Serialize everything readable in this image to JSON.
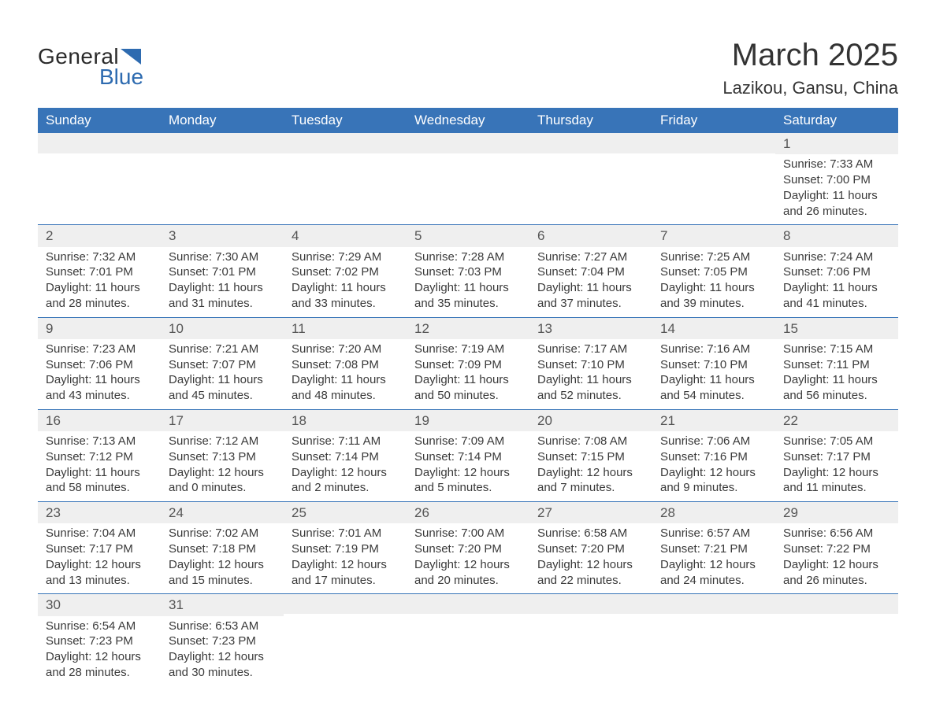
{
  "logo": {
    "text1": "General",
    "text2": "Blue",
    "tri_color": "#2e6bb0"
  },
  "title": {
    "month": "March 2025",
    "location": "Lazikou, Gansu, China"
  },
  "colors": {
    "header_bg": "#3874b8",
    "header_text": "#ffffff",
    "daynum_bg": "#efefef",
    "border": "#3874b8",
    "body_text": "#3a3a3a"
  },
  "day_headers": [
    "Sunday",
    "Monday",
    "Tuesday",
    "Wednesday",
    "Thursday",
    "Friday",
    "Saturday"
  ],
  "weeks": [
    [
      {
        "n": "",
        "sunrise": "",
        "sunset": "",
        "dl1": "",
        "dl2": ""
      },
      {
        "n": "",
        "sunrise": "",
        "sunset": "",
        "dl1": "",
        "dl2": ""
      },
      {
        "n": "",
        "sunrise": "",
        "sunset": "",
        "dl1": "",
        "dl2": ""
      },
      {
        "n": "",
        "sunrise": "",
        "sunset": "",
        "dl1": "",
        "dl2": ""
      },
      {
        "n": "",
        "sunrise": "",
        "sunset": "",
        "dl1": "",
        "dl2": ""
      },
      {
        "n": "",
        "sunrise": "",
        "sunset": "",
        "dl1": "",
        "dl2": ""
      },
      {
        "n": "1",
        "sunrise": "Sunrise: 7:33 AM",
        "sunset": "Sunset: 7:00 PM",
        "dl1": "Daylight: 11 hours",
        "dl2": "and 26 minutes."
      }
    ],
    [
      {
        "n": "2",
        "sunrise": "Sunrise: 7:32 AM",
        "sunset": "Sunset: 7:01 PM",
        "dl1": "Daylight: 11 hours",
        "dl2": "and 28 minutes."
      },
      {
        "n": "3",
        "sunrise": "Sunrise: 7:30 AM",
        "sunset": "Sunset: 7:01 PM",
        "dl1": "Daylight: 11 hours",
        "dl2": "and 31 minutes."
      },
      {
        "n": "4",
        "sunrise": "Sunrise: 7:29 AM",
        "sunset": "Sunset: 7:02 PM",
        "dl1": "Daylight: 11 hours",
        "dl2": "and 33 minutes."
      },
      {
        "n": "5",
        "sunrise": "Sunrise: 7:28 AM",
        "sunset": "Sunset: 7:03 PM",
        "dl1": "Daylight: 11 hours",
        "dl2": "and 35 minutes."
      },
      {
        "n": "6",
        "sunrise": "Sunrise: 7:27 AM",
        "sunset": "Sunset: 7:04 PM",
        "dl1": "Daylight: 11 hours",
        "dl2": "and 37 minutes."
      },
      {
        "n": "7",
        "sunrise": "Sunrise: 7:25 AM",
        "sunset": "Sunset: 7:05 PM",
        "dl1": "Daylight: 11 hours",
        "dl2": "and 39 minutes."
      },
      {
        "n": "8",
        "sunrise": "Sunrise: 7:24 AM",
        "sunset": "Sunset: 7:06 PM",
        "dl1": "Daylight: 11 hours",
        "dl2": "and 41 minutes."
      }
    ],
    [
      {
        "n": "9",
        "sunrise": "Sunrise: 7:23 AM",
        "sunset": "Sunset: 7:06 PM",
        "dl1": "Daylight: 11 hours",
        "dl2": "and 43 minutes."
      },
      {
        "n": "10",
        "sunrise": "Sunrise: 7:21 AM",
        "sunset": "Sunset: 7:07 PM",
        "dl1": "Daylight: 11 hours",
        "dl2": "and 45 minutes."
      },
      {
        "n": "11",
        "sunrise": "Sunrise: 7:20 AM",
        "sunset": "Sunset: 7:08 PM",
        "dl1": "Daylight: 11 hours",
        "dl2": "and 48 minutes."
      },
      {
        "n": "12",
        "sunrise": "Sunrise: 7:19 AM",
        "sunset": "Sunset: 7:09 PM",
        "dl1": "Daylight: 11 hours",
        "dl2": "and 50 minutes."
      },
      {
        "n": "13",
        "sunrise": "Sunrise: 7:17 AM",
        "sunset": "Sunset: 7:10 PM",
        "dl1": "Daylight: 11 hours",
        "dl2": "and 52 minutes."
      },
      {
        "n": "14",
        "sunrise": "Sunrise: 7:16 AM",
        "sunset": "Sunset: 7:10 PM",
        "dl1": "Daylight: 11 hours",
        "dl2": "and 54 minutes."
      },
      {
        "n": "15",
        "sunrise": "Sunrise: 7:15 AM",
        "sunset": "Sunset: 7:11 PM",
        "dl1": "Daylight: 11 hours",
        "dl2": "and 56 minutes."
      }
    ],
    [
      {
        "n": "16",
        "sunrise": "Sunrise: 7:13 AM",
        "sunset": "Sunset: 7:12 PM",
        "dl1": "Daylight: 11 hours",
        "dl2": "and 58 minutes."
      },
      {
        "n": "17",
        "sunrise": "Sunrise: 7:12 AM",
        "sunset": "Sunset: 7:13 PM",
        "dl1": "Daylight: 12 hours",
        "dl2": "and 0 minutes."
      },
      {
        "n": "18",
        "sunrise": "Sunrise: 7:11 AM",
        "sunset": "Sunset: 7:14 PM",
        "dl1": "Daylight: 12 hours",
        "dl2": "and 2 minutes."
      },
      {
        "n": "19",
        "sunrise": "Sunrise: 7:09 AM",
        "sunset": "Sunset: 7:14 PM",
        "dl1": "Daylight: 12 hours",
        "dl2": "and 5 minutes."
      },
      {
        "n": "20",
        "sunrise": "Sunrise: 7:08 AM",
        "sunset": "Sunset: 7:15 PM",
        "dl1": "Daylight: 12 hours",
        "dl2": "and 7 minutes."
      },
      {
        "n": "21",
        "sunrise": "Sunrise: 7:06 AM",
        "sunset": "Sunset: 7:16 PM",
        "dl1": "Daylight: 12 hours",
        "dl2": "and 9 minutes."
      },
      {
        "n": "22",
        "sunrise": "Sunrise: 7:05 AM",
        "sunset": "Sunset: 7:17 PM",
        "dl1": "Daylight: 12 hours",
        "dl2": "and 11 minutes."
      }
    ],
    [
      {
        "n": "23",
        "sunrise": "Sunrise: 7:04 AM",
        "sunset": "Sunset: 7:17 PM",
        "dl1": "Daylight: 12 hours",
        "dl2": "and 13 minutes."
      },
      {
        "n": "24",
        "sunrise": "Sunrise: 7:02 AM",
        "sunset": "Sunset: 7:18 PM",
        "dl1": "Daylight: 12 hours",
        "dl2": "and 15 minutes."
      },
      {
        "n": "25",
        "sunrise": "Sunrise: 7:01 AM",
        "sunset": "Sunset: 7:19 PM",
        "dl1": "Daylight: 12 hours",
        "dl2": "and 17 minutes."
      },
      {
        "n": "26",
        "sunrise": "Sunrise: 7:00 AM",
        "sunset": "Sunset: 7:20 PM",
        "dl1": "Daylight: 12 hours",
        "dl2": "and 20 minutes."
      },
      {
        "n": "27",
        "sunrise": "Sunrise: 6:58 AM",
        "sunset": "Sunset: 7:20 PM",
        "dl1": "Daylight: 12 hours",
        "dl2": "and 22 minutes."
      },
      {
        "n": "28",
        "sunrise": "Sunrise: 6:57 AM",
        "sunset": "Sunset: 7:21 PM",
        "dl1": "Daylight: 12 hours",
        "dl2": "and 24 minutes."
      },
      {
        "n": "29",
        "sunrise": "Sunrise: 6:56 AM",
        "sunset": "Sunset: 7:22 PM",
        "dl1": "Daylight: 12 hours",
        "dl2": "and 26 minutes."
      }
    ],
    [
      {
        "n": "30",
        "sunrise": "Sunrise: 6:54 AM",
        "sunset": "Sunset: 7:23 PM",
        "dl1": "Daylight: 12 hours",
        "dl2": "and 28 minutes."
      },
      {
        "n": "31",
        "sunrise": "Sunrise: 6:53 AM",
        "sunset": "Sunset: 7:23 PM",
        "dl1": "Daylight: 12 hours",
        "dl2": "and 30 minutes."
      },
      {
        "n": "",
        "sunrise": "",
        "sunset": "",
        "dl1": "",
        "dl2": ""
      },
      {
        "n": "",
        "sunrise": "",
        "sunset": "",
        "dl1": "",
        "dl2": ""
      },
      {
        "n": "",
        "sunrise": "",
        "sunset": "",
        "dl1": "",
        "dl2": ""
      },
      {
        "n": "",
        "sunrise": "",
        "sunset": "",
        "dl1": "",
        "dl2": ""
      },
      {
        "n": "",
        "sunrise": "",
        "sunset": "",
        "dl1": "",
        "dl2": ""
      }
    ]
  ]
}
